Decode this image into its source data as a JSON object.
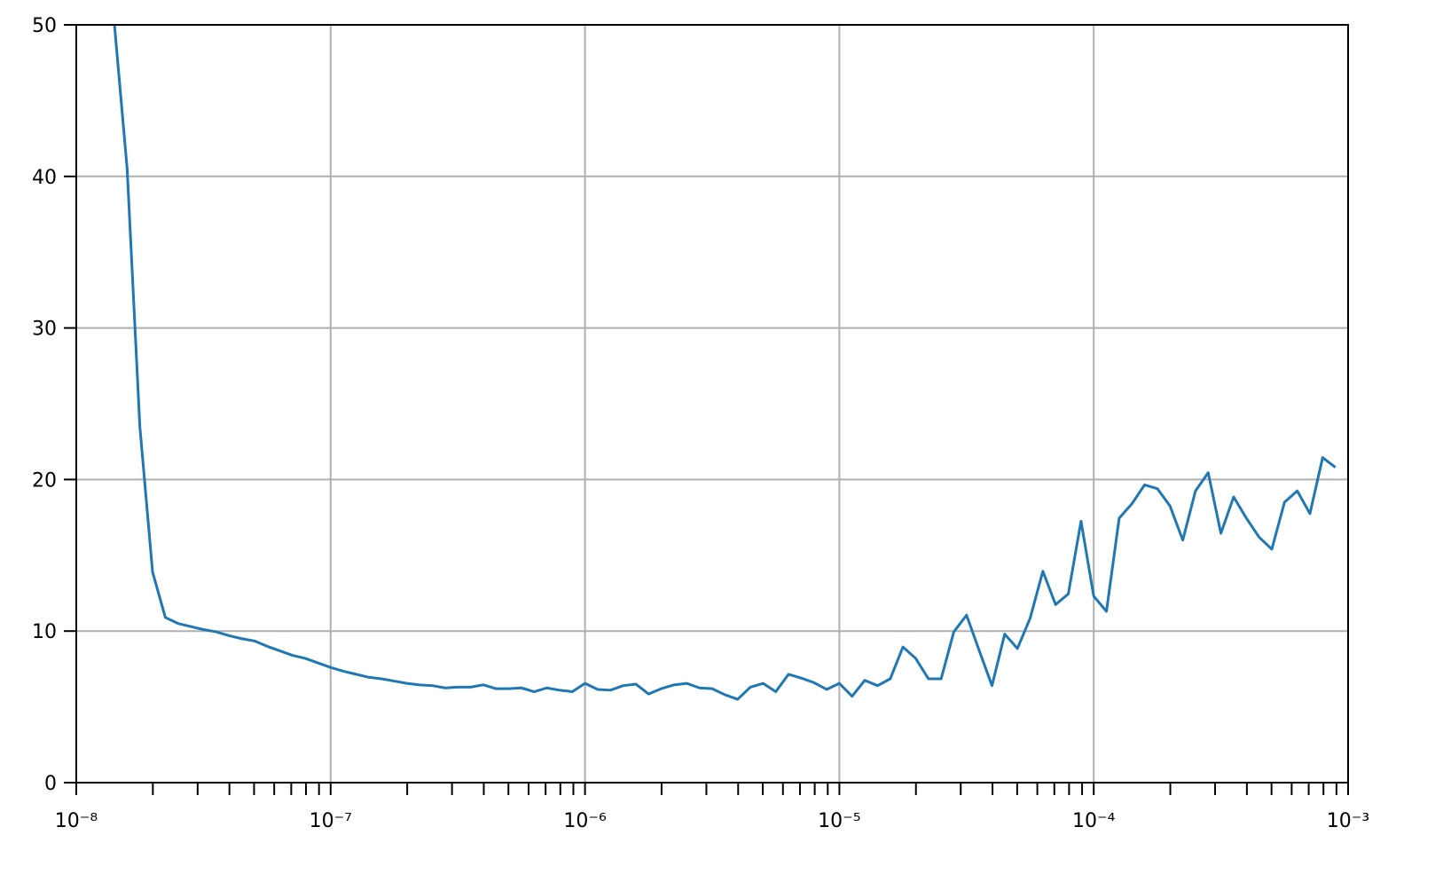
{
  "chart_data": {
    "type": "line",
    "xscale": "log",
    "grid": true,
    "color": "#1f77b4",
    "x": [
      1.413e-08,
      1.585e-08,
      1.778e-08,
      1.995e-08,
      2.239e-08,
      2.512e-08,
      2.818e-08,
      3.162e-08,
      3.548e-08,
      3.981e-08,
      4.467e-08,
      5.012e-08,
      5.623e-08,
      6.31e-08,
      7.079e-08,
      7.943e-08,
      8.913e-08,
      1e-07,
      1.122e-07,
      1.259e-07,
      1.413e-07,
      1.585e-07,
      1.778e-07,
      1.995e-07,
      2.239e-07,
      2.512e-07,
      2.818e-07,
      3.162e-07,
      3.548e-07,
      3.981e-07,
      4.467e-07,
      5.012e-07,
      5.623e-07,
      6.31e-07,
      7.079e-07,
      7.943e-07,
      8.913e-07,
      1e-06,
      1.122e-06,
      1.259e-06,
      1.413e-06,
      1.585e-06,
      1.778e-06,
      1.995e-06,
      2.239e-06,
      2.512e-06,
      2.818e-06,
      3.162e-06,
      3.548e-06,
      3.981e-06,
      4.467e-06,
      5.012e-06,
      5.623e-06,
      6.31e-06,
      7.079e-06,
      7.943e-06,
      8.913e-06,
      1e-05,
      1.122e-05,
      1.259e-05,
      1.413e-05,
      1.585e-05,
      1.778e-05,
      1.995e-05,
      2.239e-05,
      2.512e-05,
      2.818e-05,
      3.162e-05,
      3.548e-05,
      3.981e-05,
      4.467e-05,
      5.012e-05,
      5.623e-05,
      6.31e-05,
      7.079e-05,
      7.943e-05,
      8.913e-05,
      0.0001,
      0.0001122,
      0.0001259,
      0.0001413,
      0.0001585,
      0.0001778,
      0.0001995,
      0.0002239,
      0.0002512,
      0.0002818,
      0.0003162,
      0.0003548,
      0.0003981,
      0.0004467,
      0.0005012,
      0.0005623,
      0.000631,
      0.0007079,
      0.0007943,
      0.0008913
    ],
    "values": [
      50,
      40.5,
      23.5,
      13.9,
      10.9,
      10.5,
      10.3,
      10.1,
      9.95,
      9.7,
      9.5,
      9.35,
      9.0,
      8.7,
      8.4,
      8.2,
      7.9,
      7.6,
      7.35,
      7.15,
      6.95,
      6.85,
      6.7,
      6.55,
      6.45,
      6.4,
      6.25,
      6.3,
      6.3,
      6.45,
      6.2,
      6.2,
      6.25,
      6.0,
      6.25,
      6.1,
      6.0,
      6.55,
      6.15,
      6.1,
      6.4,
      6.5,
      5.85,
      6.2,
      6.45,
      6.55,
      6.25,
      6.2,
      5.8,
      5.5,
      6.3,
      6.55,
      6.0,
      7.15,
      6.9,
      6.6,
      6.15,
      6.55,
      5.7,
      6.75,
      6.4,
      6.85,
      8.95,
      8.2,
      6.85,
      6.85,
      9.95,
      11.05,
      8.7,
      6.4,
      9.8,
      8.85,
      10.85,
      13.95,
      11.75,
      12.45,
      17.25,
      12.3,
      11.3,
      17.45,
      18.4,
      19.65,
      19.4,
      18.25,
      16.0,
      19.25,
      20.45,
      16.45,
      18.85,
      17.45,
      16.2,
      15.4,
      18.5,
      19.25,
      17.75,
      21.45,
      20.8
    ],
    "xlim": [
      1e-08,
      0.001
    ],
    "xticks": [
      {
        "value": 1e-08,
        "label": "10⁻⁸"
      },
      {
        "value": 1e-07,
        "label": "10⁻⁷"
      },
      {
        "value": 1e-06,
        "label": "10⁻⁶"
      },
      {
        "value": 1e-05,
        "label": "10⁻⁵"
      },
      {
        "value": 0.0001,
        "label": "10⁻⁴"
      },
      {
        "value": 0.001,
        "label": "10⁻³"
      }
    ],
    "ylim": [
      0,
      50
    ],
    "yticks": [
      0,
      10,
      20,
      30,
      40,
      50
    ]
  }
}
